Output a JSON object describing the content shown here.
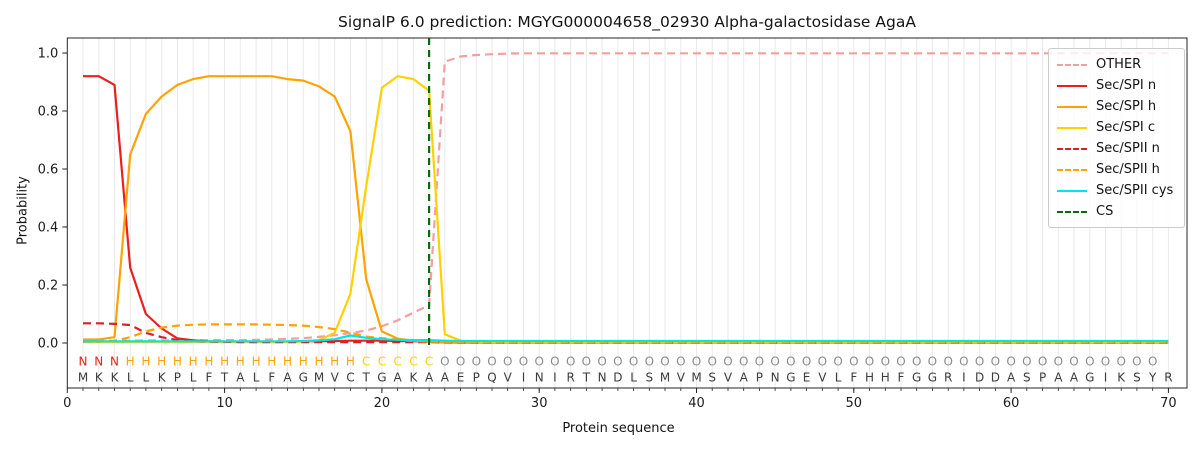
{
  "chart_data": {
    "type": "line",
    "title": "SignalP 6.0 prediction: MGYG000004658_02930 Alpha-galactosidase AgaA",
    "xlabel": "Protein sequence",
    "ylabel": "Probability",
    "x_ticks": [
      0,
      10,
      20,
      30,
      40,
      50,
      60,
      70
    ],
    "y_ticks": [
      0.0,
      0.2,
      0.4,
      0.6,
      0.8,
      1.0
    ],
    "xlim": [
      0,
      71
    ],
    "ylim": [
      0.0,
      1.05
    ],
    "grid": "vertical-per-residue",
    "legend_position": "upper right",
    "x_positions": "1-70",
    "series": [
      {
        "name": "OTHER",
        "color": "#f29f9f",
        "dash": true,
        "values": [
          0.008,
          0.008,
          0.008,
          0.008,
          0.009,
          0.009,
          0.009,
          0.009,
          0.01,
          0.01,
          0.01,
          0.011,
          0.012,
          0.014,
          0.017,
          0.021,
          0.027,
          0.034,
          0.043,
          0.058,
          0.078,
          0.105,
          0.13,
          0.97,
          0.988,
          0.993,
          0.996,
          0.998,
          0.999,
          0.999,
          0.999,
          0.999,
          0.999,
          0.999,
          0.999,
          0.999,
          0.999,
          0.999,
          0.999,
          0.999,
          0.999,
          0.999,
          0.999,
          0.999,
          0.999,
          0.999,
          0.999,
          0.999,
          0.999,
          0.999,
          0.999,
          0.999,
          0.999,
          0.999,
          0.999,
          0.999,
          0.999,
          0.999,
          0.999,
          0.999,
          0.999,
          0.999,
          0.999,
          0.999,
          0.999,
          0.999,
          0.999,
          0.999,
          0.999,
          0.999
        ]
      },
      {
        "name": "Sec/SPI n",
        "color": "#e9201e",
        "dash": false,
        "values": [
          0.92,
          0.92,
          0.89,
          0.26,
          0.1,
          0.05,
          0.016,
          0.009,
          0.006,
          0.005,
          0.005,
          0.005,
          0.005,
          0.005,
          0.006,
          0.006,
          0.007,
          0.008,
          0.008,
          0.008,
          0.007,
          0.006,
          0.005,
          0.002,
          0.001,
          0.001,
          0.001,
          0.001,
          0.001,
          0.001,
          0.001,
          0.001,
          0.001,
          0.001,
          0.001,
          0.001,
          0.001,
          0.001,
          0.001,
          0.001,
          0.001,
          0.001,
          0.001,
          0.001,
          0.001,
          0.001,
          0.001,
          0.001,
          0.001,
          0.001,
          0.001,
          0.001,
          0.001,
          0.001,
          0.001,
          0.001,
          0.001,
          0.001,
          0.001,
          0.001,
          0.001,
          0.001,
          0.001,
          0.001,
          0.001,
          0.001,
          0.001,
          0.001,
          0.001,
          0.001
        ]
      },
      {
        "name": "Sec/SPI h",
        "color": "#ffa300",
        "dash": false,
        "values": [
          0.012,
          0.012,
          0.02,
          0.65,
          0.79,
          0.85,
          0.89,
          0.91,
          0.92,
          0.92,
          0.92,
          0.92,
          0.92,
          0.91,
          0.905,
          0.885,
          0.85,
          0.73,
          0.22,
          0.04,
          0.015,
          0.008,
          0.005,
          0.003,
          0.002,
          0.002,
          0.002,
          0.002,
          0.002,
          0.002,
          0.002,
          0.002,
          0.002,
          0.002,
          0.002,
          0.002,
          0.002,
          0.002,
          0.002,
          0.002,
          0.002,
          0.002,
          0.002,
          0.002,
          0.002,
          0.002,
          0.002,
          0.002,
          0.002,
          0.002,
          0.002,
          0.002,
          0.002,
          0.002,
          0.002,
          0.002,
          0.002,
          0.002,
          0.002,
          0.002,
          0.002,
          0.002,
          0.002,
          0.002,
          0.002,
          0.002,
          0.002,
          0.002,
          0.002,
          0.002
        ]
      },
      {
        "name": "Sec/SPI c",
        "color": "#ffd100",
        "dash": false,
        "values": [
          0.003,
          0.003,
          0.003,
          0.003,
          0.003,
          0.003,
          0.003,
          0.003,
          0.003,
          0.003,
          0.003,
          0.003,
          0.003,
          0.003,
          0.005,
          0.01,
          0.035,
          0.17,
          0.54,
          0.88,
          0.92,
          0.91,
          0.87,
          0.03,
          0.008,
          0.003,
          0.003,
          0.003,
          0.003,
          0.003,
          0.003,
          0.003,
          0.003,
          0.003,
          0.003,
          0.003,
          0.003,
          0.003,
          0.003,
          0.003,
          0.003,
          0.003,
          0.003,
          0.003,
          0.003,
          0.003,
          0.003,
          0.003,
          0.003,
          0.003,
          0.003,
          0.003,
          0.003,
          0.003,
          0.003,
          0.003,
          0.003,
          0.003,
          0.003,
          0.003,
          0.003,
          0.003,
          0.003,
          0.003,
          0.003,
          0.003,
          0.003,
          0.003,
          0.003,
          0.003
        ]
      },
      {
        "name": "Sec/SPII n",
        "color": "#dc1e27",
        "dash": true,
        "values": [
          0.068,
          0.068,
          0.066,
          0.062,
          0.035,
          0.02,
          0.01,
          0.006,
          0.005,
          0.004,
          0.003,
          0.003,
          0.003,
          0.003,
          0.003,
          0.003,
          0.003,
          0.003,
          0.003,
          0.003,
          0.003,
          0.003,
          0.003,
          0.002,
          0.002,
          0.002,
          0.002,
          0.002,
          0.002,
          0.002,
          0.002,
          0.002,
          0.002,
          0.002,
          0.002,
          0.002,
          0.002,
          0.002,
          0.002,
          0.002,
          0.002,
          0.002,
          0.002,
          0.002,
          0.002,
          0.002,
          0.002,
          0.002,
          0.002,
          0.002,
          0.002,
          0.002,
          0.002,
          0.002,
          0.002,
          0.002,
          0.002,
          0.002,
          0.002,
          0.002,
          0.002,
          0.002,
          0.002,
          0.002,
          0.002,
          0.002,
          0.002,
          0.002,
          0.002,
          0.002
        ]
      },
      {
        "name": "Sec/SPII h",
        "color": "#ffa300",
        "dash": true,
        "values": [
          0.004,
          0.005,
          0.008,
          0.02,
          0.04,
          0.053,
          0.06,
          0.063,
          0.064,
          0.064,
          0.064,
          0.064,
          0.063,
          0.062,
          0.06,
          0.055,
          0.048,
          0.036,
          0.022,
          0.017,
          0.011,
          0.007,
          0.005,
          0.004,
          0.003,
          0.003,
          0.003,
          0.003,
          0.003,
          0.003,
          0.003,
          0.003,
          0.003,
          0.003,
          0.003,
          0.003,
          0.003,
          0.003,
          0.003,
          0.003,
          0.003,
          0.003,
          0.003,
          0.003,
          0.003,
          0.003,
          0.003,
          0.003,
          0.003,
          0.003,
          0.003,
          0.003,
          0.003,
          0.003,
          0.003,
          0.003,
          0.003,
          0.003,
          0.003,
          0.003,
          0.003,
          0.003,
          0.003,
          0.003,
          0.003,
          0.003,
          0.003,
          0.003,
          0.003,
          0.003
        ]
      },
      {
        "name": "Sec/SPII cys",
        "color": "#00e6e6",
        "dash": false,
        "values": [
          0.006,
          0.006,
          0.006,
          0.006,
          0.006,
          0.006,
          0.006,
          0.006,
          0.006,
          0.006,
          0.006,
          0.006,
          0.006,
          0.006,
          0.007,
          0.009,
          0.013,
          0.026,
          0.018,
          0.013,
          0.011,
          0.01,
          0.01,
          0.008,
          0.007,
          0.007,
          0.007,
          0.007,
          0.007,
          0.007,
          0.007,
          0.007,
          0.007,
          0.007,
          0.007,
          0.007,
          0.007,
          0.007,
          0.007,
          0.007,
          0.007,
          0.007,
          0.007,
          0.007,
          0.007,
          0.007,
          0.007,
          0.007,
          0.007,
          0.007,
          0.007,
          0.007,
          0.007,
          0.007,
          0.007,
          0.007,
          0.007,
          0.007,
          0.007,
          0.007,
          0.007,
          0.007,
          0.007,
          0.007,
          0.007,
          0.007,
          0.007,
          0.007,
          0.007,
          0.007
        ]
      }
    ],
    "cs_line": {
      "name": "CS",
      "position": 23,
      "color": "#0b6b0b",
      "dash": true
    },
    "annotation_row": "NNNHHHHHHHHHHHHHHHCCCCCOOOOOOOOOOOOOOOOOOOOOOOOOOOOOOOOOOOOOOOOOOOOOO",
    "sequence_row": "MKKLLKPLFTALFAGMVCTGAKAAEPQVINIRTNDLSMVMSVAPNGEVLFHHFGGRIDDASPAAGIKSYR",
    "annotation_colors": {
      "N": "#e9201e",
      "H": "#ffa300",
      "C": "#ffd100",
      "O": "#8c8c8c"
    },
    "sequence_color": "#3c3c3c"
  }
}
